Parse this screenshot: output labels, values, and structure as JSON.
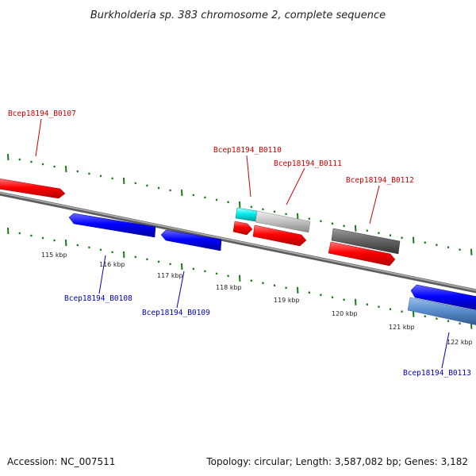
{
  "title": "Burkholderia sp. 383 chromosome 2, complete sequence",
  "footer": {
    "accession": "Accession: NC_007511",
    "summary": "Topology: circular; Length: 3,587,082 bp; Genes: 3,182"
  },
  "colors": {
    "forward_gene": "#ff0000",
    "reverse_gene": "#0000ff",
    "label_forward": "#cc0000",
    "label_reverse": "#0000bb",
    "tick": "#1a7a1a",
    "backbone": "#888888"
  },
  "ticks": [
    {
      "label": "115 kbp"
    },
    {
      "label": "116 kbp"
    },
    {
      "label": "117 kbp"
    },
    {
      "label": "118 kbp"
    },
    {
      "label": "119 kbp"
    },
    {
      "label": "120 kbp"
    },
    {
      "label": "121 kbp"
    },
    {
      "label": "122 kbp"
    }
  ],
  "genes": [
    {
      "name": "Bcep18194_B0107",
      "strand": "+",
      "type": "red"
    },
    {
      "name": "Bcep18194_B0108",
      "strand": "-",
      "type": "blue"
    },
    {
      "name": "Bcep18194_B0109",
      "strand": "-",
      "type": "blue"
    },
    {
      "name": "Bcep18194_B0110",
      "strand": "+",
      "type": "red"
    },
    {
      "name": "Bcep18194_B0111",
      "strand": "+",
      "type": "red"
    },
    {
      "name": "Bcep18194_B0112",
      "strand": "+",
      "type": "red"
    },
    {
      "name": "Bcep18194_B0113",
      "strand": "-",
      "type": "blue"
    }
  ]
}
